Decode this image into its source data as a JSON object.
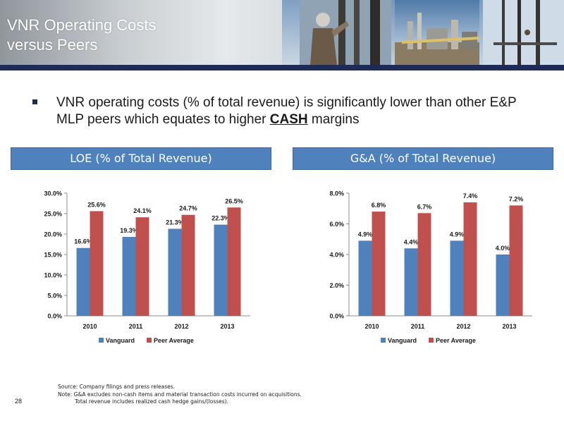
{
  "slide": {
    "title_line1": "VNR Operating Costs",
    "title_line2": "versus Peers",
    "bullet_text": "VNR operating costs (% of total revenue) is significantly lower than other E&P MLP peers which equates to higher ",
    "bullet_emphasis": "CASH",
    "bullet_tail": " margins",
    "footnote_source": "Source: Company filings and press releases.",
    "footnote_note": "Note: G&A excludes non-cash items and material transaction costs incurred on acquisitions.",
    "footnote_note2": "Total revenue includes realized cash hedge gains/(losses).",
    "page_number": "28"
  },
  "colors": {
    "vanguard": "#4f81bd",
    "peer": "#c0504d",
    "header_bar": "#1f2b57",
    "chart_header": "#4f81bd"
  },
  "chart_data": [
    {
      "type": "bar",
      "title": "LOE (% of Total Revenue)",
      "categories": [
        "2010",
        "2011",
        "2012",
        "2013"
      ],
      "series": [
        {
          "name": "Vanguard",
          "values": [
            16.6,
            19.3,
            21.3,
            22.3
          ],
          "labels": [
            "16.6%",
            "19.3%",
            "21.3%",
            "22.3%"
          ]
        },
        {
          "name": "Peer Average",
          "values": [
            25.6,
            24.1,
            24.7,
            26.5
          ],
          "labels": [
            "25.6%",
            "24.1%",
            "24.7%",
            "26.5%"
          ]
        }
      ],
      "ylim": [
        0,
        30
      ],
      "yticks": [
        "0.0%",
        "5.0%",
        "10.0%",
        "15.0%",
        "20.0%",
        "25.0%",
        "30.0%"
      ],
      "legend": "bottom",
      "grid": false
    },
    {
      "type": "bar",
      "title": "G&A (% of Total Revenue)",
      "categories": [
        "2010",
        "2011",
        "2012",
        "2013"
      ],
      "series": [
        {
          "name": "Vanguard",
          "values": [
            4.9,
            4.4,
            4.9,
            4.0
          ],
          "labels": [
            "4.9%",
            "4.4%",
            "4.9%",
            "4.0%"
          ]
        },
        {
          "name": "Peer Average",
          "values": [
            6.8,
            6.7,
            7.4,
            7.2
          ],
          "labels": [
            "6.8%",
            "6.7%",
            "7.4%",
            "7.2%"
          ]
        }
      ],
      "ylim": [
        0,
        8
      ],
      "yticks": [
        "0.0%",
        "2.0%",
        "4.0%",
        "6.0%",
        "8.0%"
      ],
      "legend": "bottom",
      "grid": false
    }
  ]
}
